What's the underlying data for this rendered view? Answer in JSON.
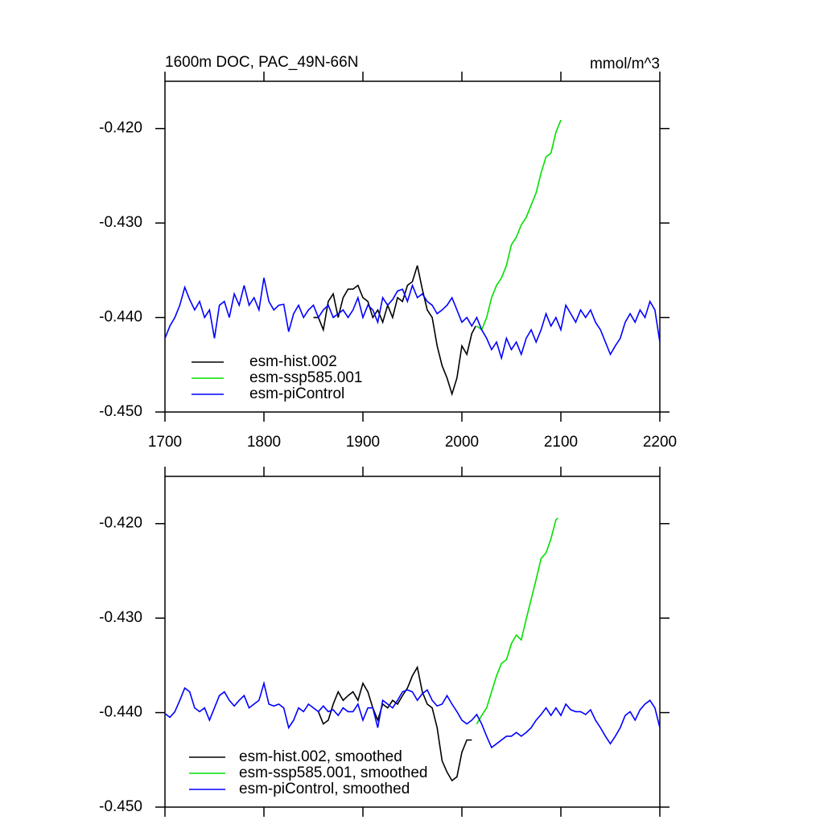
{
  "chart_data": [
    {
      "type": "line",
      "title": "1600m DOC, PAC_49N-66N",
      "units": "mmol/m^3",
      "xlim": [
        1700,
        2200
      ],
      "xticks": [
        1700,
        1800,
        1900,
        2000,
        2100,
        2200
      ],
      "ylim": [
        -0.45,
        -0.415
      ],
      "yticks": [
        {
          "value": -0.45,
          "label": "-0.450"
        },
        {
          "value": -0.44,
          "label": "-0.440"
        },
        {
          "value": -0.43,
          "label": "-0.430"
        },
        {
          "value": -0.42,
          "label": "-0.420"
        }
      ],
      "legend": "lower left",
      "series": [
        {
          "name": "esm-hist.002",
          "color": "#000000",
          "x": [
            1850,
            1855,
            1860,
            1865,
            1870,
            1875,
            1880,
            1885,
            1890,
            1895,
            1900,
            1905,
            1910,
            1915,
            1920,
            1925,
            1930,
            1935,
            1940,
            1945,
            1950,
            1955,
            1960,
            1965,
            1970,
            1975,
            1980,
            1985,
            1990,
            1995,
            2000,
            2005,
            2010,
            2014
          ],
          "values": [
            -0.44,
            -0.44,
            -0.4413,
            -0.4383,
            -0.4375,
            -0.44,
            -0.4379,
            -0.437,
            -0.437,
            -0.4366,
            -0.4379,
            -0.4383,
            -0.44,
            -0.4392,
            -0.4405,
            -0.4387,
            -0.44,
            -0.4379,
            -0.4383,
            -0.4366,
            -0.4362,
            -0.4345,
            -0.437,
            -0.4392,
            -0.44,
            -0.443,
            -0.4451,
            -0.4464,
            -0.4481,
            -0.4464,
            -0.443,
            -0.4439,
            -0.4417,
            -0.4409
          ]
        },
        {
          "name": "esm-ssp585.001",
          "color": "#00e000",
          "x": [
            2015,
            2020,
            2025,
            2030,
            2035,
            2040,
            2045,
            2050,
            2055,
            2060,
            2065,
            2070,
            2075,
            2080,
            2085,
            2090,
            2095,
            2100
          ],
          "values": [
            -0.4409,
            -0.4413,
            -0.44,
            -0.4379,
            -0.4366,
            -0.4358,
            -0.4345,
            -0.4323,
            -0.4315,
            -0.4302,
            -0.4294,
            -0.4281,
            -0.4268,
            -0.4247,
            -0.423,
            -0.4226,
            -0.4204,
            -0.4191
          ]
        },
        {
          "name": "esm-piControl",
          "color": "#0000ff",
          "x": [
            1700,
            1705,
            1710,
            1715,
            1720,
            1725,
            1730,
            1735,
            1740,
            1745,
            1750,
            1755,
            1760,
            1765,
            1770,
            1775,
            1780,
            1785,
            1790,
            1795,
            1800,
            1805,
            1810,
            1815,
            1820,
            1825,
            1830,
            1835,
            1840,
            1845,
            1850,
            1855,
            1860,
            1865,
            1870,
            1875,
            1880,
            1885,
            1890,
            1895,
            1900,
            1905,
            1910,
            1915,
            1920,
            1925,
            1930,
            1935,
            1940,
            1945,
            1950,
            1955,
            1960,
            1965,
            1970,
            1975,
            1980,
            1985,
            1990,
            1995,
            2000,
            2005,
            2010,
            2015,
            2020,
            2025,
            2030,
            2035,
            2040,
            2045,
            2050,
            2055,
            2060,
            2065,
            2070,
            2075,
            2080,
            2085,
            2090,
            2095,
            2100,
            2105,
            2110,
            2115,
            2120,
            2125,
            2130,
            2135,
            2140,
            2145,
            2150,
            2155,
            2160,
            2165,
            2170,
            2175,
            2180,
            2185,
            2190,
            2195,
            2200
          ],
          "values": [
            -0.4422,
            -0.4409,
            -0.44,
            -0.4387,
            -0.4368,
            -0.4381,
            -0.4392,
            -0.4383,
            -0.44,
            -0.4392,
            -0.4422,
            -0.4387,
            -0.4383,
            -0.44,
            -0.4375,
            -0.4387,
            -0.4366,
            -0.4387,
            -0.4379,
            -0.4392,
            -0.4358,
            -0.4383,
            -0.4392,
            -0.4387,
            -0.4386,
            -0.4415,
            -0.4396,
            -0.4387,
            -0.44,
            -0.4392,
            -0.4387,
            -0.44,
            -0.4392,
            -0.4387,
            -0.44,
            -0.4396,
            -0.4392,
            -0.44,
            -0.4392,
            -0.4379,
            -0.44,
            -0.4387,
            -0.4392,
            -0.4405,
            -0.4379,
            -0.4387,
            -0.4381,
            -0.4372,
            -0.437,
            -0.4383,
            -0.4366,
            -0.4379,
            -0.4375,
            -0.4383,
            -0.4387,
            -0.4396,
            -0.4392,
            -0.4387,
            -0.4379,
            -0.4392,
            -0.4405,
            -0.44,
            -0.4409,
            -0.44,
            -0.4413,
            -0.4422,
            -0.4434,
            -0.4426,
            -0.4443,
            -0.4422,
            -0.4434,
            -0.4426,
            -0.4439,
            -0.4422,
            -0.4413,
            -0.4426,
            -0.4413,
            -0.4396,
            -0.4409,
            -0.44,
            -0.4413,
            -0.4387,
            -0.4396,
            -0.4405,
            -0.4392,
            -0.44,
            -0.4392,
            -0.4405,
            -0.4413,
            -0.4426,
            -0.4439,
            -0.443,
            -0.4422,
            -0.4405,
            -0.4396,
            -0.4405,
            -0.4392,
            -0.44,
            -0.4383,
            -0.4392,
            -0.4426
          ]
        }
      ]
    },
    {
      "type": "line",
      "xlim": [
        1700,
        2200
      ],
      "ylim": [
        -0.45,
        -0.415
      ],
      "yticks": [
        {
          "value": -0.45,
          "label": "-0.450"
        },
        {
          "value": -0.44,
          "label": "-0.440"
        },
        {
          "value": -0.43,
          "label": "-0.430"
        },
        {
          "value": -0.42,
          "label": "-0.420"
        }
      ],
      "legend": "lower left",
      "series": [
        {
          "name": "esm-hist.002, smoothed",
          "color": "#000000",
          "x": [
            1855,
            1860,
            1865,
            1870,
            1875,
            1880,
            1885,
            1890,
            1895,
            1900,
            1905,
            1910,
            1915,
            1920,
            1925,
            1930,
            1935,
            1940,
            1945,
            1950,
            1955,
            1960,
            1965,
            1970,
            1975,
            1980,
            1985,
            1990,
            1995,
            2000,
            2005,
            2010
          ],
          "values": [
            -0.4399,
            -0.4412,
            -0.4408,
            -0.4391,
            -0.4378,
            -0.4387,
            -0.4382,
            -0.4378,
            -0.4387,
            -0.4369,
            -0.4378,
            -0.4395,
            -0.4408,
            -0.4391,
            -0.4395,
            -0.4387,
            -0.4391,
            -0.4382,
            -0.4374,
            -0.4361,
            -0.4352,
            -0.4378,
            -0.4391,
            -0.4395,
            -0.4416,
            -0.4451,
            -0.4463,
            -0.4472,
            -0.4468,
            -0.4442,
            -0.4429,
            -0.4429
          ]
        },
        {
          "name": "esm-ssp585.001, smoothed",
          "color": "#00e000",
          "x": [
            2015,
            2020,
            2025,
            2030,
            2035,
            2040,
            2045,
            2050,
            2055,
            2060,
            2065,
            2070,
            2075,
            2080,
            2085,
            2090,
            2095,
            2097
          ],
          "values": [
            -0.4412,
            -0.4403,
            -0.4395,
            -0.4378,
            -0.4361,
            -0.4348,
            -0.4344,
            -0.4327,
            -0.4318,
            -0.4323,
            -0.4301,
            -0.428,
            -0.4259,
            -0.4237,
            -0.4231,
            -0.4216,
            -0.4196,
            -0.4194
          ]
        },
        {
          "name": "esm-piControl, smoothed",
          "color": "#0000ff",
          "x": [
            1700,
            1705,
            1710,
            1715,
            1720,
            1725,
            1730,
            1735,
            1740,
            1745,
            1750,
            1755,
            1760,
            1765,
            1770,
            1775,
            1780,
            1785,
            1790,
            1795,
            1800,
            1805,
            1810,
            1815,
            1820,
            1825,
            1830,
            1835,
            1840,
            1845,
            1850,
            1855,
            1860,
            1865,
            1870,
            1875,
            1880,
            1885,
            1890,
            1895,
            1900,
            1905,
            1910,
            1915,
            1920,
            1925,
            1930,
            1935,
            1940,
            1945,
            1950,
            1955,
            1960,
            1965,
            1970,
            1975,
            1980,
            1985,
            1990,
            1995,
            2000,
            2005,
            2010,
            2015,
            2020,
            2025,
            2030,
            2035,
            2040,
            2045,
            2050,
            2055,
            2060,
            2065,
            2070,
            2075,
            2080,
            2085,
            2090,
            2095,
            2100,
            2105,
            2110,
            2115,
            2120,
            2125,
            2130,
            2135,
            2140,
            2145,
            2150,
            2155,
            2160,
            2165,
            2170,
            2175,
            2180,
            2185,
            2190,
            2195,
            2200
          ],
          "values": [
            -0.4401,
            -0.4405,
            -0.4399,
            -0.4387,
            -0.4374,
            -0.4378,
            -0.4395,
            -0.4399,
            -0.4395,
            -0.4408,
            -0.4395,
            -0.4382,
            -0.4378,
            -0.4387,
            -0.4393,
            -0.4387,
            -0.4382,
            -0.4395,
            -0.4391,
            -0.4387,
            -0.4369,
            -0.4391,
            -0.4393,
            -0.4391,
            -0.4395,
            -0.4416,
            -0.4408,
            -0.4395,
            -0.4399,
            -0.4391,
            -0.4395,
            -0.4399,
            -0.4393,
            -0.4399,
            -0.4397,
            -0.4403,
            -0.4395,
            -0.4399,
            -0.4399,
            -0.4391,
            -0.4408,
            -0.4395,
            -0.4395,
            -0.4416,
            -0.4387,
            -0.4391,
            -0.4395,
            -0.4387,
            -0.4378,
            -0.4376,
            -0.4378,
            -0.4387,
            -0.438,
            -0.4376,
            -0.4387,
            -0.4393,
            -0.4391,
            -0.4382,
            -0.4391,
            -0.4399,
            -0.4408,
            -0.4412,
            -0.4408,
            -0.4402,
            -0.4412,
            -0.4425,
            -0.4437,
            -0.4433,
            -0.4429,
            -0.4425,
            -0.4425,
            -0.4421,
            -0.4425,
            -0.4421,
            -0.4416,
            -0.4408,
            -0.4402,
            -0.4395,
            -0.4403,
            -0.4395,
            -0.4403,
            -0.4391,
            -0.4397,
            -0.4399,
            -0.4399,
            -0.4402,
            -0.4397,
            -0.4408,
            -0.4416,
            -0.4425,
            -0.4433,
            -0.4425,
            -0.4416,
            -0.4403,
            -0.4399,
            -0.4408,
            -0.4397,
            -0.4391,
            -0.4387,
            -0.4395,
            -0.4416
          ]
        }
      ]
    }
  ]
}
